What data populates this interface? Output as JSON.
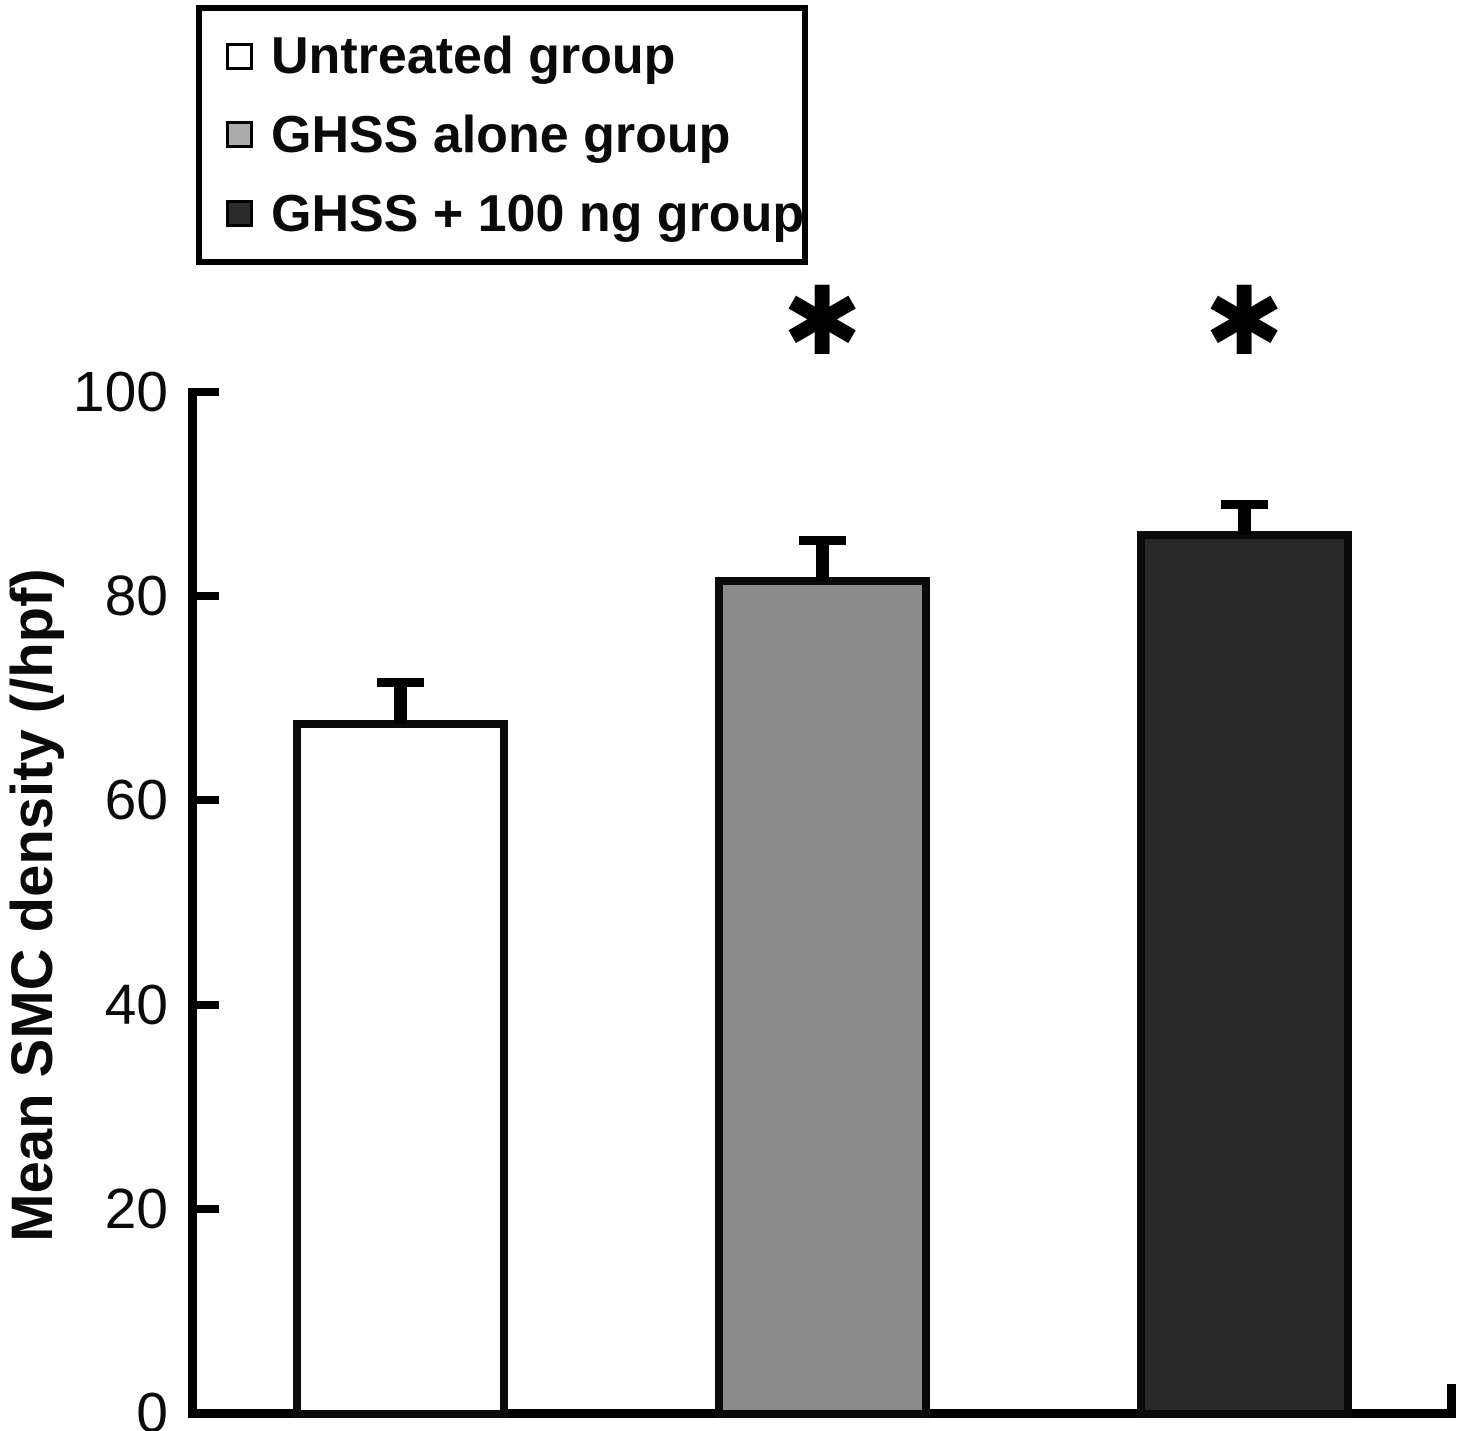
{
  "legend": {
    "items": [
      {
        "label": "Untreated group",
        "swatch_color": "#ffffff"
      },
      {
        "label": "GHSS alone group",
        "swatch_color": "#ababab"
      },
      {
        "label": "GHSS + 100 ng group",
        "swatch_color": "#2b2b2b"
      }
    ]
  },
  "chart_data": {
    "type": "bar",
    "title": "",
    "xlabel": "",
    "ylabel": "Mean SMC density (/hpf)",
    "ylim": [
      0,
      100
    ],
    "yticks": [
      0,
      20,
      40,
      60,
      80,
      100
    ],
    "grid": false,
    "legend_position": "top-left",
    "categories": [
      "Untreated group",
      "GHSS alone group",
      "GHSS + 100 ng group"
    ],
    "series": [
      {
        "name": "Mean SMC density (/hpf)",
        "values": [
          67.5,
          81.5,
          86
        ],
        "error_plus": [
          4,
          4,
          3
        ],
        "bar_fill_colors": [
          "#ffffff",
          "#8c8c8c",
          "#282828"
        ],
        "bar_edge_color": "#0a0a0a",
        "significance_markers": [
          "",
          "*",
          "*"
        ]
      }
    ]
  },
  "colors": {
    "background": "#ffffff",
    "axis": "#000000",
    "text": "#0a0a0a"
  }
}
